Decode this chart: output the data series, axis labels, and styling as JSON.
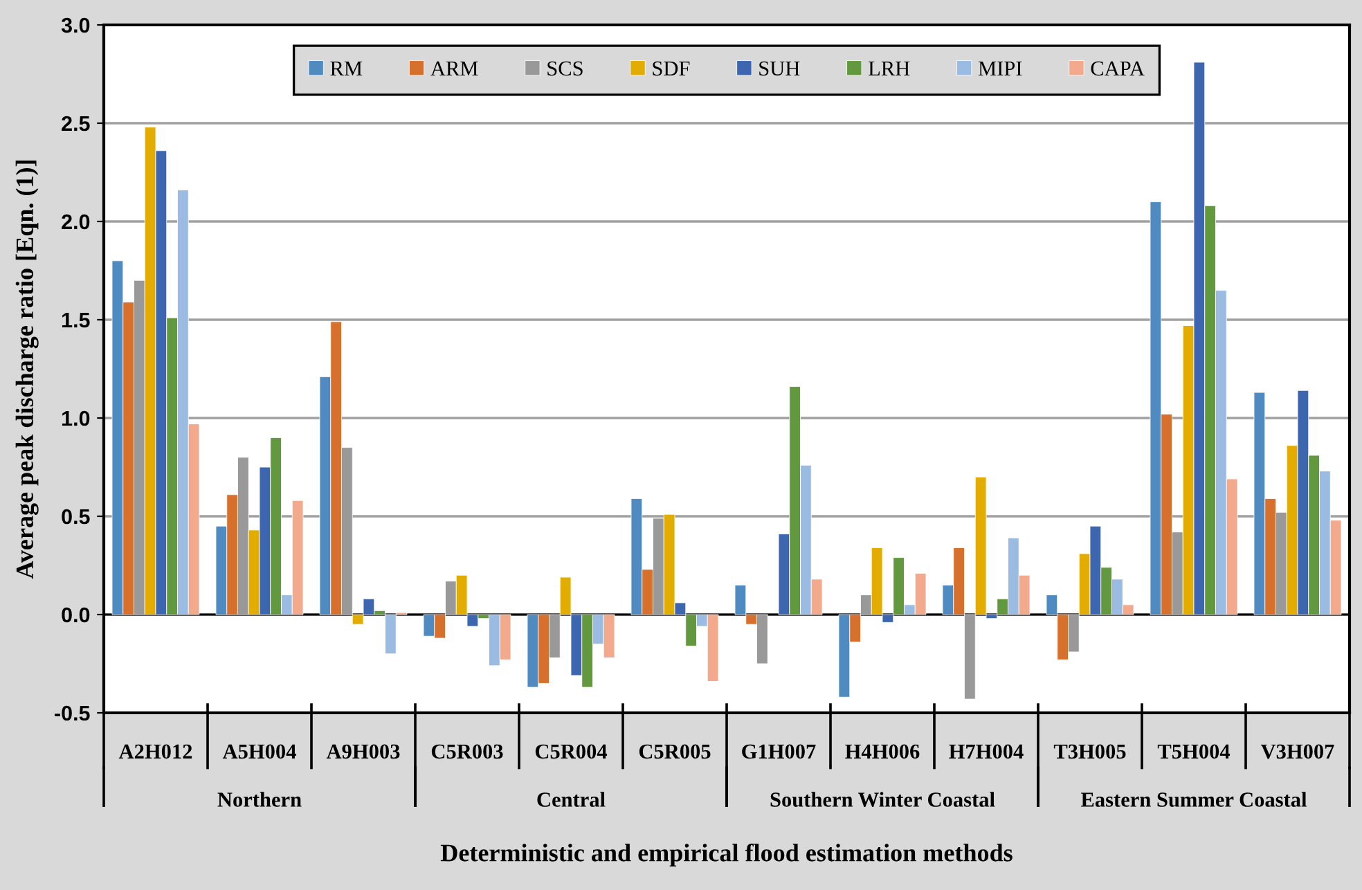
{
  "chart_data": {
    "type": "bar",
    "xlabel": "Deterministic and empirical flood estimation methods",
    "ylabel": "Average peak discharge ratio [Eqn. (1)]",
    "categories": [
      "A2H012",
      "A5H004",
      "A9H003",
      "C5R003",
      "C5R004",
      "C5R005",
      "G1H007",
      "H4H006",
      "H7H004",
      "T3H005",
      "T5H004",
      "V3H007"
    ],
    "annotations": [
      "Northern",
      "Central",
      "Southern Winter Coastal",
      "Eastern Summer Coastal"
    ],
    "series": [
      {
        "name": "RM",
        "color": "#4f8bc0",
        "values": [
          1.8,
          0.45,
          1.21,
          -0.11,
          -0.37,
          0.59,
          0.15,
          -0.42,
          0.15,
          0.1,
          2.1,
          1.13
        ]
      },
      {
        "name": "ARM",
        "color": "#d6702c",
        "values": [
          1.59,
          0.61,
          1.49,
          -0.12,
          -0.35,
          0.23,
          -0.05,
          -0.14,
          0.34,
          -0.23,
          1.02,
          0.59
        ]
      },
      {
        "name": "SCS",
        "color": "#999999",
        "values": [
          1.7,
          0.8,
          0.85,
          0.17,
          -0.22,
          0.49,
          -0.25,
          0.1,
          -0.43,
          -0.19,
          0.42,
          0.52
        ]
      },
      {
        "name": "SDF",
        "color": "#e2ac00",
        "values": [
          2.48,
          0.43,
          -0.05,
          0.2,
          0.19,
          0.51,
          null,
          0.34,
          0.7,
          0.31,
          1.47,
          0.86
        ]
      },
      {
        "name": "SUH",
        "color": "#3c66b0",
        "values": [
          2.36,
          0.75,
          0.08,
          -0.06,
          -0.31,
          0.06,
          0.41,
          -0.04,
          -0.02,
          0.45,
          2.81,
          1.14
        ]
      },
      {
        "name": "LRH",
        "color": "#62993e",
        "values": [
          1.51,
          0.9,
          0.02,
          -0.02,
          -0.37,
          -0.16,
          1.16,
          0.29,
          0.08,
          0.24,
          2.08,
          0.81
        ]
      },
      {
        "name": "MIPI",
        "color": "#9abce2",
        "values": [
          2.16,
          0.1,
          -0.2,
          -0.26,
          -0.15,
          -0.06,
          0.76,
          0.05,
          0.39,
          0.18,
          1.65,
          0.73
        ]
      },
      {
        "name": "CAPA",
        "color": "#f2a98c",
        "values": [
          0.97,
          0.58,
          0.01,
          -0.23,
          -0.22,
          -0.34,
          0.18,
          0.21,
          0.2,
          0.05,
          0.69,
          0.48
        ]
      }
    ],
    "ylim": [
      -0.5,
      3.0
    ],
    "yticks": [
      {
        "value": -0.5,
        "label": "-0.5"
      },
      {
        "value": 0,
        "label": "0.0"
      },
      {
        "value": 0.5,
        "label": "0.5"
      },
      {
        "value": 1.0,
        "label": "1.0"
      },
      {
        "value": 1.5,
        "label": "1.5"
      },
      {
        "value": 2.0,
        "label": "2.0"
      },
      {
        "value": 2.5,
        "label": "2.5"
      },
      {
        "value": 3.0,
        "label": "3.0"
      }
    ],
    "grid": "y",
    "legend": "top"
  }
}
